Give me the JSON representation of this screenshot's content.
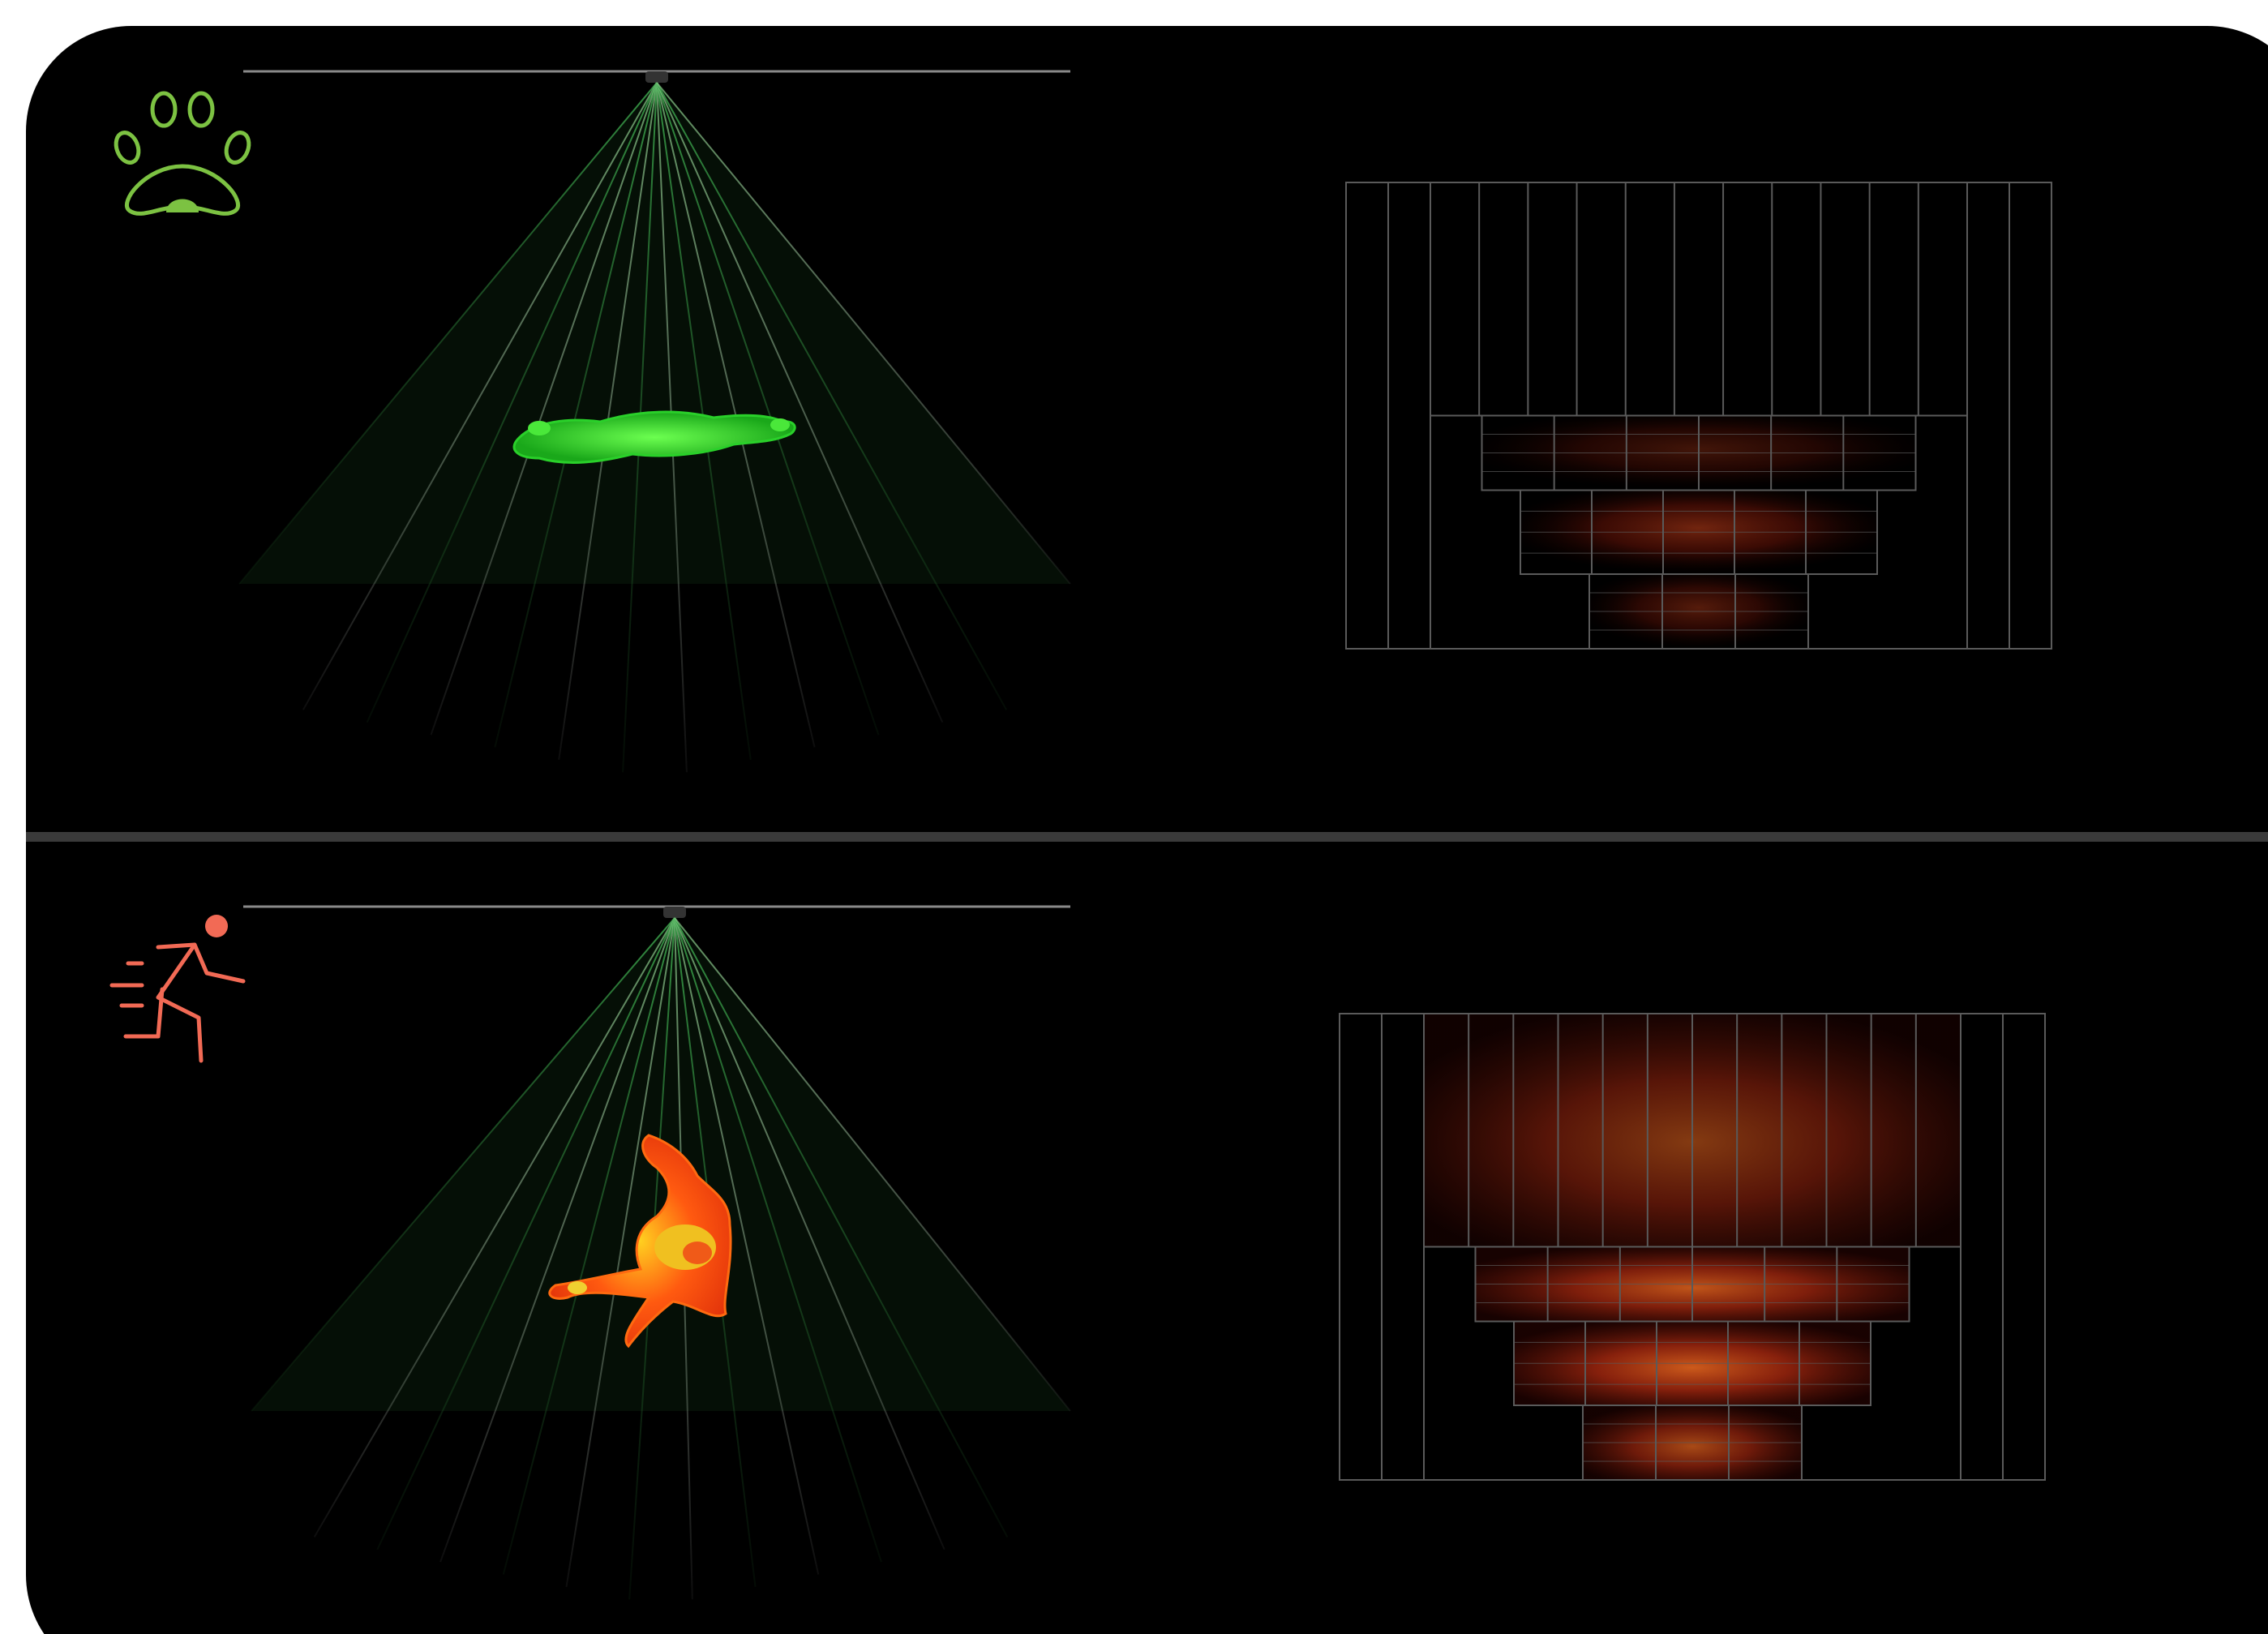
{
  "panels": [
    {
      "id": "pet",
      "icon": "paw-print-icon",
      "icon_color": "#7cc242",
      "subject": "pet",
      "subject_color": "#3fe03a",
      "beam_color": "#2f8f3a",
      "heatmap": {
        "rows": [
          {
            "cols": 11,
            "level": 0.0
          },
          {
            "cols": 6,
            "level": 0.35
          },
          {
            "cols": 5,
            "level": 0.6
          },
          {
            "cols": 3,
            "level": 0.45
          }
        ]
      }
    },
    {
      "id": "person",
      "icon": "running-person-icon",
      "icon_color": "#f26a55",
      "subject": "person",
      "subject_color": "#f04a1a",
      "beam_color": "#2f8f3a",
      "heatmap": {
        "rows": [
          {
            "cols": 12,
            "level": 0.55
          },
          {
            "cols": 6,
            "level": 0.8
          },
          {
            "cols": 5,
            "level": 0.85
          },
          {
            "cols": 3,
            "level": 0.7
          }
        ]
      }
    }
  ],
  "colors": {
    "background": "#000000",
    "divider": "#3a3a3a",
    "grid_line": "#5a5a5a",
    "frame": "#ffffff"
  }
}
